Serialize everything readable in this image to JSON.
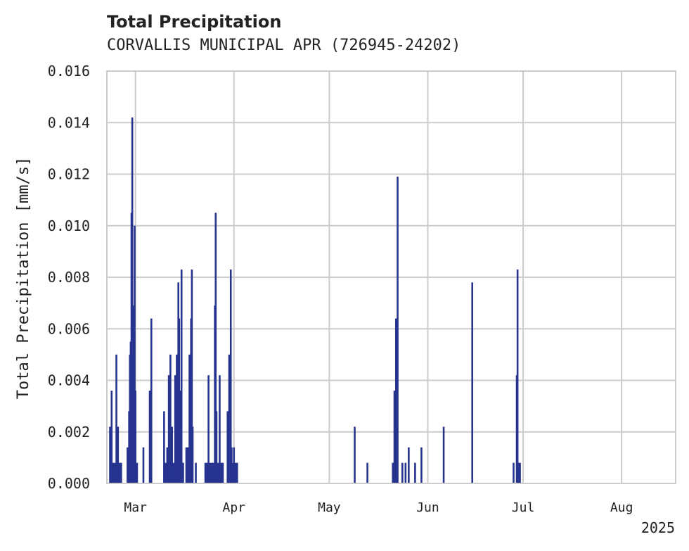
{
  "chart_data": {
    "type": "bar",
    "title": "Total Precipitation",
    "subtitle": "CORVALLIS MUNICIPAL APR (726945-24202)",
    "ylabel": "Total Precipitation [mm/s]",
    "xlabel": "",
    "ylim": [
      0,
      0.016
    ],
    "xlim": [
      "2025-02-20",
      "2025-08-18"
    ],
    "yticks": [
      "0.000",
      "0.002",
      "0.004",
      "0.006",
      "0.008",
      "0.010",
      "0.012",
      "0.014",
      "0.016"
    ],
    "xticks": [
      {
        "date": "2025-03-01",
        "label": "Mar"
      },
      {
        "date": "2025-04-01",
        "label": "Apr"
      },
      {
        "date": "2025-05-01",
        "label": "May"
      },
      {
        "date": "2025-06-01",
        "label": "Jun"
      },
      {
        "date": "2025-07-01",
        "label": "Jul"
      },
      {
        "date": "2025-08-01",
        "label": "Aug"
      }
    ],
    "year_label": "2025",
    "grid": true,
    "color": "#26338f",
    "series": [
      {
        "x": [
          "2025-02-21",
          "2025-02-21T12",
          "2025-02-22",
          "2025-02-22T12",
          "2025-02-23",
          "2025-02-23T12",
          "2025-02-24",
          "2025-02-24T12",
          "2025-02-26T12",
          "2025-02-27",
          "2025-02-27T06",
          "2025-02-27T12",
          "2025-02-27T18",
          "2025-02-28",
          "2025-02-28T06",
          "2025-02-28T12",
          "2025-02-28T18",
          "2025-03-01",
          "2025-03-01T12",
          "2025-03-03T12",
          "2025-03-05T12",
          "2025-03-06",
          "2025-03-10",
          "2025-03-10T12",
          "2025-03-11",
          "2025-03-11T12",
          "2025-03-12",
          "2025-03-12T12",
          "2025-03-13",
          "2025-03-13T12",
          "2025-03-14",
          "2025-03-14T06",
          "2025-03-14T12",
          "2025-03-14T18",
          "2025-03-15",
          "2025-03-15T12",
          "2025-03-16",
          "2025-03-17",
          "2025-03-17T12",
          "2025-03-18",
          "2025-03-18T06",
          "2025-03-18T12",
          "2025-03-18T18",
          "2025-03-19",
          "2025-03-20",
          "2025-03-23",
          "2025-03-23T12",
          "2025-03-24",
          "2025-03-24T12",
          "2025-03-25",
          "2025-03-25T12",
          "2025-03-26",
          "2025-03-26T06",
          "2025-03-26T12",
          "2025-03-27",
          "2025-03-27T12",
          "2025-03-28",
          "2025-03-28T12",
          "2025-03-30",
          "2025-03-30T12",
          "2025-03-31",
          "2025-03-31T06",
          "2025-03-31T12",
          "2025-04-01",
          "2025-04-01T12",
          "2025-04-02",
          "2025-05-09",
          "2025-05-13",
          "2025-05-21",
          "2025-05-21T12",
          "2025-05-22",
          "2025-05-22T12",
          "2025-05-24",
          "2025-05-25",
          "2025-05-26",
          "2025-05-28",
          "2025-05-30",
          "2025-06-06",
          "2025-06-15",
          "2025-06-28",
          "2025-06-29",
          "2025-06-29T06",
          "2025-06-29T12",
          "2025-06-30"
        ],
        "values": [
          0.0022,
          0.0036,
          0.0008,
          0.0008,
          0.005,
          0.0022,
          0.0008,
          0.0008,
          0.0014,
          0.0028,
          0.005,
          0.0055,
          0.0105,
          0.0142,
          0.0069,
          0.0022,
          0.01,
          0.0036,
          0.0008,
          0.0014,
          0.0036,
          0.0064,
          0.0028,
          0.0008,
          0.0014,
          0.0042,
          0.005,
          0.0022,
          0.0008,
          0.0042,
          0.005,
          0.0014,
          0.0078,
          0.0064,
          0.0036,
          0.0083,
          0.0008,
          0.0014,
          0.0014,
          0.005,
          0.0042,
          0.0064,
          0.0083,
          0.0022,
          0.0008,
          0.0008,
          0.0008,
          0.0042,
          0.0008,
          0.0008,
          0.0008,
          0.0069,
          0.0105,
          0.0028,
          0.0008,
          0.0042,
          0.0008,
          0.0008,
          0.0028,
          0.005,
          0.0083,
          0.0014,
          0.0008,
          0.0014,
          0.0008,
          0.0008,
          0.0022,
          0.0008,
          0.0008,
          0.0036,
          0.0064,
          0.0119,
          0.0008,
          0.0008,
          0.0014,
          0.0008,
          0.0014,
          0.0022,
          0.0078,
          0.0008,
          0.0042,
          0.0083,
          0.0008,
          0.0008
        ]
      }
    ]
  }
}
